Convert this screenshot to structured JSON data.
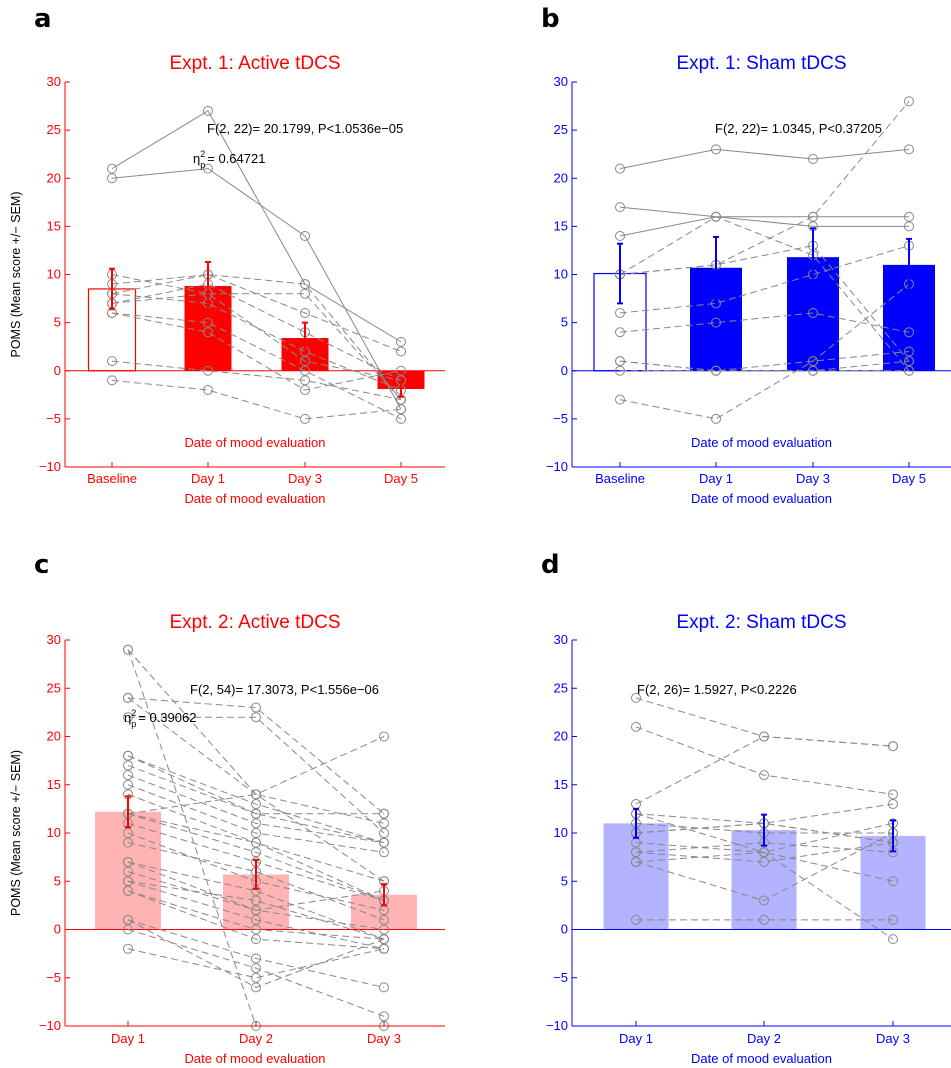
{
  "colors": {
    "red": "#ff0000",
    "blue": "#0000ff",
    "lightRed": "#ffb3b3",
    "lightBlue": "#b3b3ff",
    "gray": "#888888"
  },
  "chart_data": [
    {
      "panel_label": "a",
      "type": "bar",
      "title": "Expt. 1: Active tDCS",
      "color": "red",
      "bar_style": [
        "outline",
        "solid",
        "solid",
        "solid"
      ],
      "categories": [
        "Baseline",
        "Day 1",
        "Day 3",
        "Day 5"
      ],
      "values": [
        8.5,
        8.8,
        3.4,
        -1.9
      ],
      "errors": [
        2.1,
        2.5,
        1.6,
        0.8
      ],
      "ylim": [
        -10,
        30
      ],
      "yticks": [
        -10,
        -5,
        0,
        5,
        10,
        15,
        20,
        25,
        30
      ],
      "ylabel": "POMS (Mean score +/− SEM)",
      "xlabel": "Date of mood evaluation",
      "inner_label": "Date of mood evaluation",
      "stat": "F(2, 22)= 20.1799, P<1.0536e−05",
      "eta_prefix": "η",
      "eta_sup": "2",
      "eta_sub": "p",
      "eta_value": "= 0.64721",
      "subjects": [
        [
          21,
          27,
          9,
          3
        ],
        [
          20,
          21,
          14,
          -4
        ],
        [
          10,
          8,
          8,
          -3
        ],
        [
          8,
          10,
          6,
          2
        ],
        [
          7,
          9,
          4,
          -1
        ],
        [
          7,
          8,
          1,
          -1
        ],
        [
          6,
          5,
          0,
          -5
        ],
        [
          6,
          4,
          -2,
          0
        ],
        [
          1,
          0,
          -1,
          -3
        ],
        [
          -1,
          -2,
          -5,
          -4
        ],
        [
          8,
          7,
          2,
          -2
        ],
        [
          9,
          10,
          9,
          -3
        ]
      ]
    },
    {
      "panel_label": "b",
      "type": "bar",
      "title": "Expt. 1: Sham tDCS",
      "color": "blue",
      "bar_style": [
        "outline",
        "solid",
        "solid",
        "solid"
      ],
      "categories": [
        "Baseline",
        "Day 1",
        "Day 3",
        "Day 5"
      ],
      "values": [
        10.1,
        10.7,
        11.8,
        11.0
      ],
      "errors": [
        3.1,
        3.2,
        3.0,
        2.7
      ],
      "ylim": [
        -10,
        30
      ],
      "yticks": [
        -10,
        -5,
        0,
        5,
        10,
        15,
        20,
        25,
        30
      ],
      "ylabel": "",
      "xlabel": "Date of mood evaluation",
      "inner_label": "Date of mood evaluation",
      "stat": "F(2, 22)= 1.0345, P<0.37205",
      "eta_prefix": "",
      "eta_sup": "",
      "eta_sub": "",
      "eta_value": "",
      "subjects": [
        [
          21,
          23,
          22,
          23
        ],
        [
          17,
          16,
          16,
          16
        ],
        [
          14,
          16,
          15,
          15
        ],
        [
          10,
          11,
          16,
          28
        ],
        [
          6,
          7,
          10,
          13
        ],
        [
          4,
          5,
          6,
          4
        ],
        [
          1,
          0,
          1,
          2
        ],
        [
          0,
          0,
          0,
          0
        ],
        [
          -3,
          -5,
          1,
          9
        ],
        [
          10,
          11,
          13,
          1
        ],
        [
          10,
          16,
          12,
          0
        ],
        [
          1,
          0,
          0,
          1
        ]
      ]
    },
    {
      "panel_label": "c",
      "type": "bar",
      "title": "Expt. 2: Active tDCS",
      "color": "lightRed",
      "errColor": "red",
      "axisColor": "red",
      "bar_style": [
        "solid",
        "solid",
        "solid"
      ],
      "categories": [
        "Day 1",
        "Day 2",
        "Day 3"
      ],
      "values": [
        12.2,
        5.7,
        3.6
      ],
      "errors": [
        1.6,
        1.5,
        1.1
      ],
      "ylim": [
        -10,
        30
      ],
      "yticks": [
        -10,
        -5,
        0,
        5,
        10,
        15,
        20,
        25,
        30
      ],
      "ylabel": "POMS (Mean score +/− SEM)",
      "xlabel": "Date of mood evaluation",
      "inner_label": "",
      "stat": "F(2, 54)= 17.3073, P<1.556e−06",
      "eta_prefix": "η",
      "eta_sup": "2",
      "eta_sub": "p",
      "eta_value": "= 0.39062",
      "subjects": [
        [
          29,
          14,
          5
        ],
        [
          24,
          23,
          12
        ],
        [
          22,
          22,
          10
        ],
        [
          18,
          13,
          9
        ],
        [
          17,
          12,
          12
        ],
        [
          16,
          11,
          9
        ],
        [
          15,
          10,
          8
        ],
        [
          14,
          9,
          5
        ],
        [
          12,
          8,
          3
        ],
        [
          12,
          14,
          11
        ],
        [
          11,
          7,
          3
        ],
        [
          10,
          5,
          2
        ],
        [
          9,
          6,
          1
        ],
        [
          7,
          2,
          0
        ],
        [
          7,
          4,
          -1
        ],
        [
          5,
          3,
          -1
        ],
        [
          5,
          1,
          -2
        ],
        [
          4,
          0,
          -1
        ],
        [
          4,
          -1,
          -2
        ],
        [
          1,
          -3,
          -6
        ],
        [
          0,
          -4,
          -9
        ],
        [
          -2,
          -5,
          -2
        ],
        [
          1,
          -6,
          -1
        ],
        [
          29,
          -10,
          -10
        ],
        [
          24,
          14,
          20
        ],
        [
          18,
          12,
          9
        ],
        [
          12,
          9,
          3
        ],
        [
          6,
          2,
          4
        ]
      ]
    },
    {
      "panel_label": "d",
      "type": "bar",
      "title": "Expt. 2: Sham tDCS",
      "color": "lightBlue",
      "errColor": "blue",
      "axisColor": "blue",
      "bar_style": [
        "solid",
        "solid",
        "solid"
      ],
      "categories": [
        "Day 1",
        "Day 2",
        "Day 3"
      ],
      "values": [
        11.0,
        10.3,
        9.7
      ],
      "errors": [
        1.5,
        1.6,
        1.6
      ],
      "ylim": [
        -10,
        30
      ],
      "yticks": [
        -10,
        -5,
        0,
        5,
        10,
        15,
        20,
        25,
        30
      ],
      "ylabel": "",
      "xlabel": "Date of mood evaluation",
      "inner_label": "",
      "stat": "F(2, 26)= 1.5927, P<0.2226",
      "eta_prefix": "",
      "eta_sup": "",
      "eta_sub": "",
      "eta_value": "",
      "subjects": [
        [
          24,
          20,
          19
        ],
        [
          21,
          16,
          14
        ],
        [
          13,
          20,
          19
        ],
        [
          12,
          11,
          13
        ],
        [
          11,
          10,
          10
        ],
        [
          10,
          11,
          9
        ],
        [
          9,
          8,
          11
        ],
        [
          8,
          9,
          8
        ],
        [
          8,
          7,
          9
        ],
        [
          7,
          8,
          5
        ],
        [
          7,
          3,
          10
        ],
        [
          1,
          1,
          1
        ],
        [
          12,
          8,
          -1
        ],
        [
          10,
          11,
          9
        ]
      ]
    }
  ]
}
